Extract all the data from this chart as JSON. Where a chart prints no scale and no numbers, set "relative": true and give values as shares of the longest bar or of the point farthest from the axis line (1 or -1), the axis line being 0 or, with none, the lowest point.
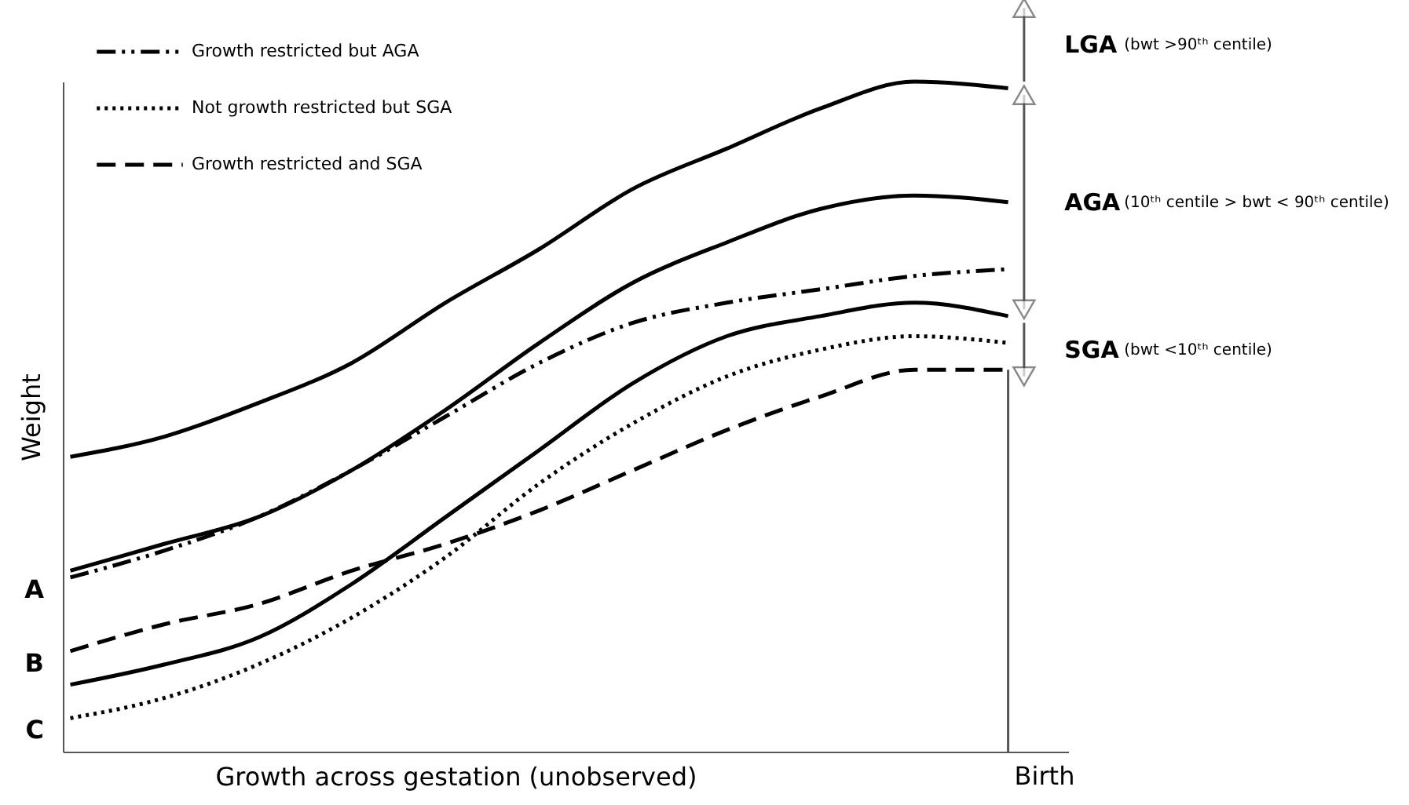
{
  "chart_data": {
    "type": "line",
    "relative": true,
    "ylabel": "Weight",
    "xlabel": "Growth across gestation (unobserved)",
    "categories": [
      null,
      null,
      null,
      null,
      null,
      null,
      null,
      null,
      null,
      null,
      null
    ],
    "series": [
      {
        "color": "#000000",
        "line_style": "solid",
        "values": [
          0.44,
          0.47,
          0.52,
          0.58,
          0.67,
          0.75,
          0.84,
          0.9,
          0.96,
          1.0,
          0.99
        ]
      },
      {
        "color": "#000000",
        "line_style": "solid",
        "values": [
          0.27,
          0.31,
          0.35,
          0.42,
          0.51,
          0.61,
          0.7,
          0.76,
          0.81,
          0.83,
          0.82
        ]
      },
      {
        "color": "#000000",
        "line_style": "solid",
        "values": [
          0.1,
          0.13,
          0.17,
          0.25,
          0.35,
          0.45,
          0.55,
          0.62,
          0.65,
          0.67,
          0.65
        ]
      },
      {
        "name": "Growth restricted but AGA",
        "color": "#000000",
        "line_style": "dashdot",
        "values": [
          0.26,
          0.3,
          0.35,
          0.42,
          0.5,
          0.58,
          0.64,
          0.67,
          0.69,
          0.71,
          0.72
        ]
      },
      {
        "name": "Not growth restricted but SGA",
        "color": "#000000",
        "line_style": "dotted",
        "values": [
          0.05,
          0.08,
          0.13,
          0.2,
          0.29,
          0.4,
          0.49,
          0.56,
          0.6,
          0.62,
          0.61
        ]
      },
      {
        "name": "Growth restricted and SGA",
        "color": "#000000",
        "line_style": "dashed",
        "values": [
          0.15,
          0.19,
          0.22,
          0.27,
          0.31,
          0.36,
          0.42,
          0.48,
          0.53,
          0.57,
          0.57
        ]
      }
    ],
    "annotations": [
      "A",
      "C",
      "B",
      "LGA (bwt >90ᵗʰ centile)",
      "AGA (10ᵗʰ centile > bwt < 90ᵗʰ centile)",
      "SGA (bwt <10ᵗʰ centile)",
      "Birth"
    ],
    "legend": "top left",
    "marker": "none"
  }
}
